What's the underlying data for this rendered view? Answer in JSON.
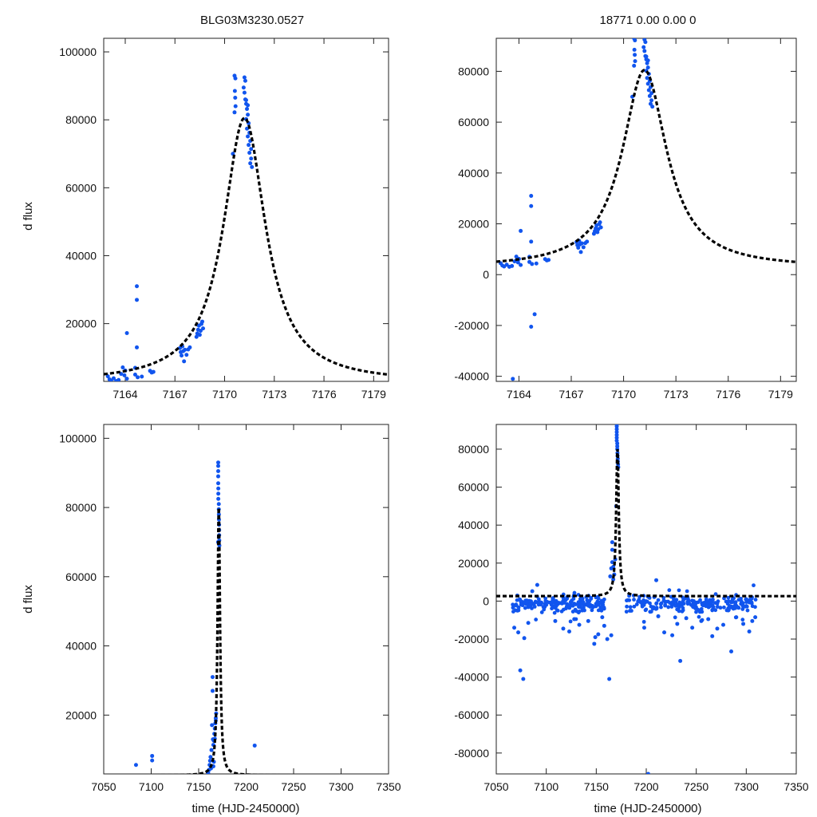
{
  "colors": {
    "data_points": "#1155ee",
    "model_curve": "#000000",
    "axes": "#222222"
  },
  "chart_data": [
    {
      "id": "top-left",
      "type": "scatter",
      "title": "BLG03M3230.0527",
      "xlabel": "",
      "ylabel": "d flux",
      "xlim": [
        7162.7,
        7179.9
      ],
      "ylim": [
        3000,
        104000
      ],
      "xticks": [
        7164,
        7167,
        7170,
        7173,
        7176,
        7179
      ],
      "yticks": [
        20000,
        40000,
        60000,
        80000,
        100000
      ],
      "model": {
        "t0": 7171.2,
        "peak": 80500,
        "baseline": 2600,
        "width": 1.55
      },
      "points": [
        [
          7162.95,
          4500
        ],
        [
          7163.05,
          3600
        ],
        [
          7163.15,
          3200
        ],
        [
          7163.3,
          3900
        ],
        [
          7163.45,
          3100
        ],
        [
          7163.6,
          3400
        ],
        [
          7163.75,
          5200
        ],
        [
          7163.85,
          7100
        ],
        [
          7163.95,
          4800
        ],
        [
          7164.0,
          6200
        ],
        [
          7164.1,
          17200
        ],
        [
          7164.1,
          3800
        ],
        [
          7164.6,
          7000
        ],
        [
          7164.6,
          5000
        ],
        [
          7164.7,
          31000
        ],
        [
          7164.7,
          27000
        ],
        [
          7164.7,
          13000
        ],
        [
          7164.75,
          4200
        ],
        [
          7165.0,
          4400
        ],
        [
          7165.5,
          6100
        ],
        [
          7165.6,
          5600
        ],
        [
          7165.7,
          5800
        ],
        [
          7167.3,
          12800
        ],
        [
          7167.35,
          11600
        ],
        [
          7167.4,
          10600
        ],
        [
          7167.45,
          13300
        ],
        [
          7167.5,
          11900
        ],
        [
          7167.55,
          8900
        ],
        [
          7167.6,
          12300
        ],
        [
          7167.7,
          10800
        ],
        [
          7167.8,
          12400
        ],
        [
          7167.9,
          13000
        ],
        [
          7168.3,
          16100
        ],
        [
          7168.35,
          17100
        ],
        [
          7168.4,
          18200
        ],
        [
          7168.45,
          19400
        ],
        [
          7168.5,
          16700
        ],
        [
          7168.55,
          17900
        ],
        [
          7168.6,
          19900
        ],
        [
          7168.65,
          20600
        ],
        [
          7168.7,
          18600
        ],
        [
          7170.5,
          70000
        ],
        [
          7170.6,
          93000
        ],
        [
          7170.65,
          92200
        ],
        [
          7170.62,
          88500
        ],
        [
          7170.64,
          86500
        ],
        [
          7170.66,
          84000
        ],
        [
          7170.6,
          82200
        ],
        [
          7171.2,
          92500
        ],
        [
          7171.25,
          91500
        ],
        [
          7171.15,
          89500
        ],
        [
          7171.2,
          88000
        ],
        [
          7171.25,
          86000
        ],
        [
          7171.3,
          84700
        ],
        [
          7171.35,
          83200
        ],
        [
          7171.4,
          81500
        ],
        [
          7171.3,
          80200
        ],
        [
          7171.45,
          79000
        ],
        [
          7171.35,
          77400
        ],
        [
          7171.5,
          76200
        ],
        [
          7171.4,
          75100
        ],
        [
          7171.55,
          73800
        ],
        [
          7171.45,
          72600
        ],
        [
          7171.6,
          71400
        ],
        [
          7171.5,
          70300
        ],
        [
          7171.6,
          68600
        ],
        [
          7171.55,
          67200
        ],
        [
          7171.65,
          66100
        ],
        [
          7171.3,
          85800
        ],
        [
          7171.4,
          84300
        ]
      ]
    },
    {
      "id": "top-right",
      "type": "scatter",
      "title": "18771   0.00   0.00   0",
      "xlabel": "",
      "ylabel": "",
      "xlim": [
        7162.7,
        7179.9
      ],
      "ylim": [
        -42000,
        93000
      ],
      "xticks": [
        7164,
        7167,
        7170,
        7173,
        7176,
        7179
      ],
      "yticks": [
        -40000,
        -20000,
        0,
        20000,
        40000,
        60000,
        80000
      ],
      "model": {
        "t0": 7171.2,
        "peak": 80500,
        "baseline": 2600,
        "width": 1.55
      },
      "points": [
        [
          7162.95,
          4500
        ],
        [
          7163.05,
          3600
        ],
        [
          7163.15,
          3200
        ],
        [
          7163.3,
          3900
        ],
        [
          7163.45,
          3100
        ],
        [
          7163.6,
          3400
        ],
        [
          7163.75,
          5200
        ],
        [
          7163.85,
          7100
        ],
        [
          7163.95,
          4800
        ],
        [
          7164.0,
          6200
        ],
        [
          7164.1,
          17200
        ],
        [
          7164.1,
          3800
        ],
        [
          7164.6,
          7000
        ],
        [
          7164.6,
          5000
        ],
        [
          7164.7,
          31000
        ],
        [
          7164.7,
          27000
        ],
        [
          7164.7,
          13000
        ],
        [
          7164.75,
          4200
        ],
        [
          7165.0,
          4400
        ],
        [
          7165.5,
          6100
        ],
        [
          7165.6,
          5600
        ],
        [
          7165.7,
          5800
        ],
        [
          7164.7,
          -20500
        ],
        [
          7164.9,
          -15600
        ],
        [
          7163.65,
          -41000
        ],
        [
          7167.3,
          12800
        ],
        [
          7167.35,
          11600
        ],
        [
          7167.4,
          10600
        ],
        [
          7167.45,
          13300
        ],
        [
          7167.5,
          11900
        ],
        [
          7167.55,
          8900
        ],
        [
          7167.6,
          12300
        ],
        [
          7167.7,
          10800
        ],
        [
          7167.8,
          12400
        ],
        [
          7167.9,
          13000
        ],
        [
          7168.3,
          16100
        ],
        [
          7168.35,
          17100
        ],
        [
          7168.4,
          18200
        ],
        [
          7168.45,
          19400
        ],
        [
          7168.5,
          16700
        ],
        [
          7168.55,
          17900
        ],
        [
          7168.6,
          19900
        ],
        [
          7168.65,
          20600
        ],
        [
          7168.7,
          18600
        ],
        [
          7170.5,
          70000
        ],
        [
          7170.6,
          93000
        ],
        [
          7170.65,
          92200
        ],
        [
          7170.62,
          88500
        ],
        [
          7170.64,
          86500
        ],
        [
          7170.66,
          84000
        ],
        [
          7170.6,
          82200
        ],
        [
          7171.2,
          92500
        ],
        [
          7171.25,
          91500
        ],
        [
          7171.15,
          89500
        ],
        [
          7171.2,
          88000
        ],
        [
          7171.25,
          86000
        ],
        [
          7171.3,
          84700
        ],
        [
          7171.35,
          83200
        ],
        [
          7171.4,
          81500
        ],
        [
          7171.3,
          80200
        ],
        [
          7171.45,
          79000
        ],
        [
          7171.35,
          77400
        ],
        [
          7171.5,
          76200
        ],
        [
          7171.4,
          75100
        ],
        [
          7171.55,
          73800
        ],
        [
          7171.45,
          72600
        ],
        [
          7171.6,
          71400
        ],
        [
          7171.5,
          70300
        ],
        [
          7171.6,
          68600
        ],
        [
          7171.55,
          67200
        ],
        [
          7171.65,
          66100
        ],
        [
          7171.3,
          85800
        ],
        [
          7171.4,
          84300
        ]
      ]
    },
    {
      "id": "bottom-left",
      "type": "scatter",
      "title": "",
      "xlabel": "time (HJD-2450000)",
      "ylabel": "d flux",
      "xlim": [
        7050,
        7350
      ],
      "ylim": [
        3000,
        104000
      ],
      "xticks": [
        7050,
        7100,
        7150,
        7200,
        7250,
        7300,
        7350
      ],
      "yticks": [
        20000,
        40000,
        60000,
        80000,
        100000
      ],
      "model": {
        "t0": 7171.2,
        "peak": 80500,
        "baseline": 2600,
        "width": 1.55
      },
      "points": [
        [
          7084,
          5600
        ],
        [
          7101,
          8200
        ],
        [
          7101,
          6900
        ],
        [
          7209,
          11200
        ],
        [
          7160,
          3300
        ],
        [
          7161,
          4200
        ],
        [
          7161.5,
          5600
        ],
        [
          7162,
          6800
        ],
        [
          7162.5,
          7900
        ],
        [
          7163,
          4600
        ],
        [
          7163.5,
          9900
        ],
        [
          7164,
          17100
        ],
        [
          7164.7,
          31000
        ],
        [
          7164.7,
          27000
        ],
        [
          7165,
          13000
        ],
        [
          7165.5,
          11400
        ],
        [
          7166,
          12600
        ],
        [
          7166.5,
          14600
        ],
        [
          7167,
          16100
        ],
        [
          7167.5,
          17600
        ],
        [
          7168,
          19100
        ],
        [
          7168.4,
          20500
        ],
        [
          7167,
          13200
        ],
        [
          7168,
          18400
        ],
        [
          7166,
          6500
        ],
        [
          7165.5,
          5200
        ],
        [
          7170.5,
          70000
        ],
        [
          7170.6,
          93000
        ],
        [
          7170.6,
          92000
        ],
        [
          7170.6,
          90500
        ],
        [
          7170.6,
          89000
        ],
        [
          7170.6,
          87000
        ],
        [
          7170.7,
          85500
        ],
        [
          7170.7,
          84000
        ],
        [
          7170.7,
          82500
        ],
        [
          7171.2,
          81000
        ],
        [
          7171.2,
          79500
        ],
        [
          7171.3,
          78000
        ],
        [
          7171.4,
          76500
        ],
        [
          7171.5,
          75000
        ],
        [
          7171.6,
          73500
        ],
        [
          7171.6,
          72000
        ],
        [
          7171.7,
          70500
        ],
        [
          7171.8,
          69000
        ]
      ]
    },
    {
      "id": "bottom-right",
      "type": "scatter",
      "title": "",
      "xlabel": "time (HJD-2450000)",
      "ylabel": "",
      "xlim": [
        7050,
        7350
      ],
      "ylim": [
        -91000,
        93000
      ],
      "xticks": [
        7050,
        7100,
        7150,
        7200,
        7250,
        7300,
        7350
      ],
      "yticks": [
        -80000,
        -60000,
        -40000,
        -20000,
        0,
        20000,
        40000,
        60000,
        80000
      ],
      "model": {
        "t0": 7171.2,
        "peak": 80500,
        "baseline": 2600,
        "width": 1.55
      },
      "dense_band": {
        "x_min": 7066,
        "x_max": 7310,
        "center": -1500,
        "spread": 5000,
        "count": 430,
        "exclude": [
          7158,
          7180
        ]
      },
      "points": [
        [
          7074,
          -36500
        ],
        [
          7077,
          -41000
        ],
        [
          7068,
          -14000
        ],
        [
          7072,
          -16500
        ],
        [
          7078,
          -19500
        ],
        [
          7082,
          -11500
        ],
        [
          7091,
          8500
        ],
        [
          7086,
          5200
        ],
        [
          7109,
          -10500
        ],
        [
          7117,
          -14500
        ],
        [
          7123,
          -16000
        ],
        [
          7128,
          -9500
        ],
        [
          7133,
          -12500
        ],
        [
          7142,
          -10500
        ],
        [
          7149,
          -19000
        ],
        [
          7148,
          -22500
        ],
        [
          7152,
          -17500
        ],
        [
          7156,
          -8500
        ],
        [
          7158,
          -13000
        ],
        [
          7161,
          -20000
        ],
        [
          7163,
          -41000
        ],
        [
          7165,
          -18000
        ],
        [
          7166,
          31000
        ],
        [
          7166,
          27000
        ],
        [
          7164,
          13000
        ],
        [
          7165,
          17200
        ],
        [
          7166,
          20500
        ],
        [
          7167,
          18000
        ],
        [
          7167,
          11400
        ],
        [
          7168,
          14000
        ],
        [
          7169,
          22000
        ],
        [
          7170,
          50000
        ],
        [
          7170.5,
          93000
        ],
        [
          7170.5,
          92000
        ],
        [
          7170.5,
          90500
        ],
        [
          7170.5,
          89000
        ],
        [
          7170.5,
          87500
        ],
        [
          7170.5,
          86000
        ],
        [
          7170.5,
          84500
        ],
        [
          7171,
          83000
        ],
        [
          7171,
          81500
        ],
        [
          7171,
          80000
        ],
        [
          7171.2,
          78000
        ],
        [
          7171.3,
          76500
        ],
        [
          7171.5,
          75000
        ],
        [
          7171.6,
          73500
        ],
        [
          7171.8,
          72000
        ],
        [
          7172,
          70500
        ],
        [
          7198,
          -14000
        ],
        [
          7202,
          -91000
        ],
        [
          7210,
          11000
        ],
        [
          7212,
          -8000
        ],
        [
          7218,
          -16500
        ],
        [
          7226,
          -18000
        ],
        [
          7231,
          -12000
        ],
        [
          7234,
          -31500
        ],
        [
          7240,
          -9000
        ],
        [
          7246,
          -14000
        ],
        [
          7255,
          -10500
        ],
        [
          7262,
          -9500
        ],
        [
          7266,
          -18500
        ],
        [
          7271,
          -14500
        ],
        [
          7277,
          -12500
        ],
        [
          7285,
          -26500
        ],
        [
          7290,
          -8500
        ],
        [
          7297,
          -12000
        ],
        [
          7303,
          -16000
        ],
        [
          7306,
          -10500
        ],
        [
          7309,
          -8500
        ]
      ]
    }
  ]
}
